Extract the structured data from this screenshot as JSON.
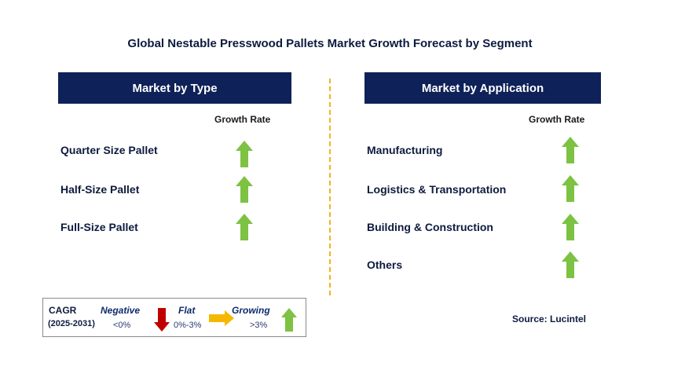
{
  "title": "Global Nestable Presswood Pallets Market Growth Forecast by Segment",
  "type_panel": {
    "header": "Market by Type",
    "growth_label": "Growth Rate",
    "items": [
      {
        "label": "Quarter Size Pallet",
        "trend": "growing"
      },
      {
        "label": "Half-Size Pallet",
        "trend": "growing"
      },
      {
        "label": "Full-Size Pallet",
        "trend": "growing"
      }
    ]
  },
  "application_panel": {
    "header": "Market by Application",
    "growth_label": "Growth Rate",
    "items": [
      {
        "label": "Manufacturing",
        "trend": "growing"
      },
      {
        "label": "Logistics & Transportation",
        "trend": "growing"
      },
      {
        "label": "Building & Construction",
        "trend": "growing"
      },
      {
        "label": "Others",
        "trend": "growing"
      }
    ]
  },
  "legend": {
    "cagr_label": "CAGR",
    "period": "(2025-2031)",
    "negative": {
      "label": "Negative",
      "range": "<0%"
    },
    "flat": {
      "label": "Flat",
      "range": "0%-3%"
    },
    "growing": {
      "label": "Growing",
      "range": ">3%"
    }
  },
  "source": "Source: Lucintel",
  "colors": {
    "header_bg": "#0e2158",
    "growing_arrow": "#7dc242",
    "negative_arrow": "#c00000",
    "flat_arrow": "#f5b800",
    "divider": "#f2b21b"
  }
}
